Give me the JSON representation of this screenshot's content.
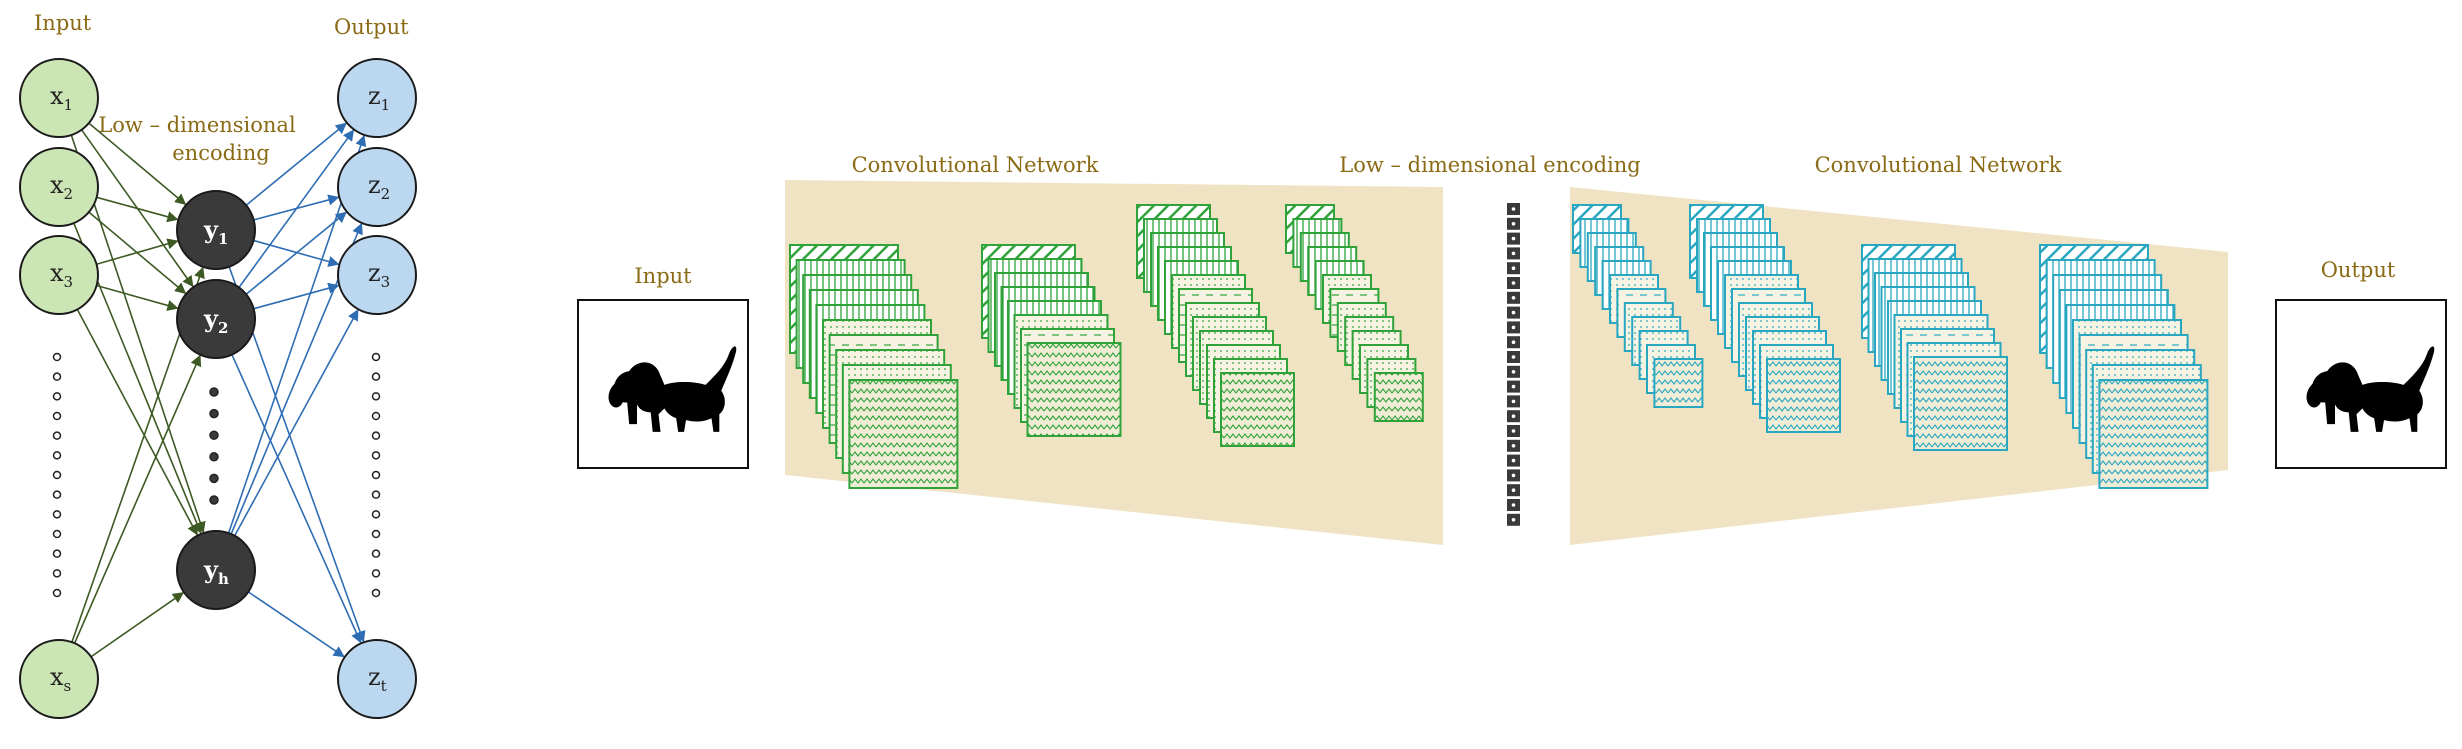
{
  "autoencoder": {
    "input_label": "Input",
    "output_label": "Output",
    "encoding_label_line1": "Low – dimensional",
    "encoding_label_line2": "encoding",
    "input_nodes": [
      {
        "base": "x",
        "sub": "1"
      },
      {
        "base": "x",
        "sub": "2"
      },
      {
        "base": "x",
        "sub": "3"
      },
      {
        "base": "x",
        "sub": "s"
      }
    ],
    "hidden_nodes": [
      {
        "base": "y",
        "sub": "1"
      },
      {
        "base": "y",
        "sub": "2"
      },
      {
        "base": "y",
        "sub": "h"
      }
    ],
    "output_nodes": [
      {
        "base": "z",
        "sub": "1"
      },
      {
        "base": "z",
        "sub": "2"
      },
      {
        "base": "z",
        "sub": "3"
      },
      {
        "base": "z",
        "sub": "t"
      }
    ],
    "colors": {
      "input_fill": "#cce5b5",
      "output_fill": "#bcd7f0",
      "hidden_fill": "#3a3a3a",
      "encoder_edge": "#3d5a24",
      "decoder_edge": "#2e6db4"
    }
  },
  "conv_autoencoder": {
    "input_label": "Input",
    "output_label": "Output",
    "encoder_label": "Convolutional Network",
    "decoder_label": "Convolutional Network",
    "encoding_label": "Low – dimensional encoding",
    "input_image_icon": "dog-silhouette",
    "output_image_icon": "dog-silhouette",
    "colors": {
      "encoder_maps": "#2fa33a",
      "decoder_maps": "#2aa7c0",
      "funnel": "#efe3c4",
      "code_block": "#3a3a3a"
    }
  }
}
